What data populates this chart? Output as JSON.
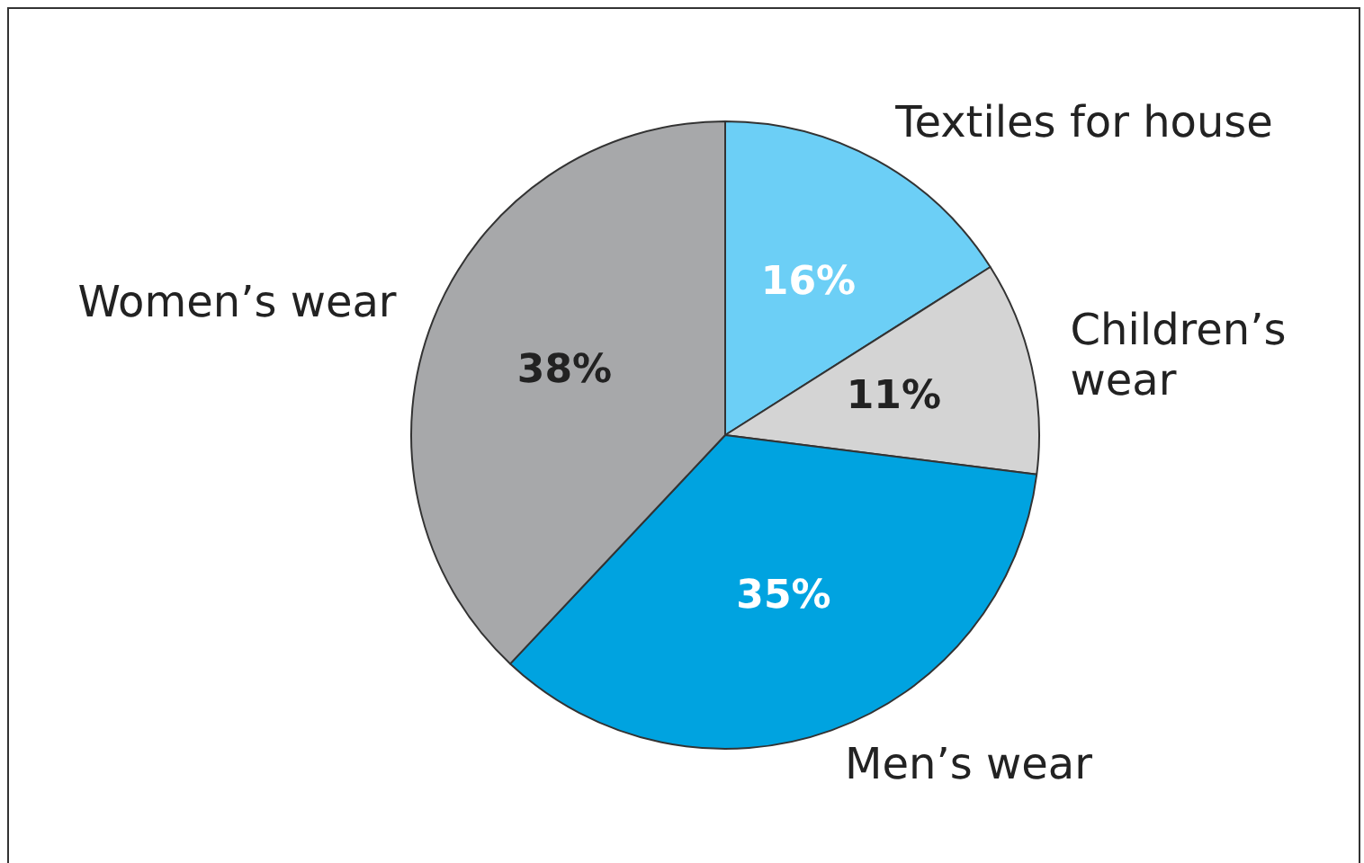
{
  "chart_data": {
    "type": "pie",
    "categories": [
      "Textiles for house",
      "Children’s wear",
      "Men’s wear",
      "Women’s wear"
    ],
    "values": [
      16,
      11,
      35,
      38
    ],
    "colors": [
      "#6ccff6",
      "#d4d4d4",
      "#00a3e0",
      "#a7a8aa"
    ],
    "value_labels": [
      "16%",
      "11%",
      "35%",
      "38%"
    ],
    "legend": false
  }
}
